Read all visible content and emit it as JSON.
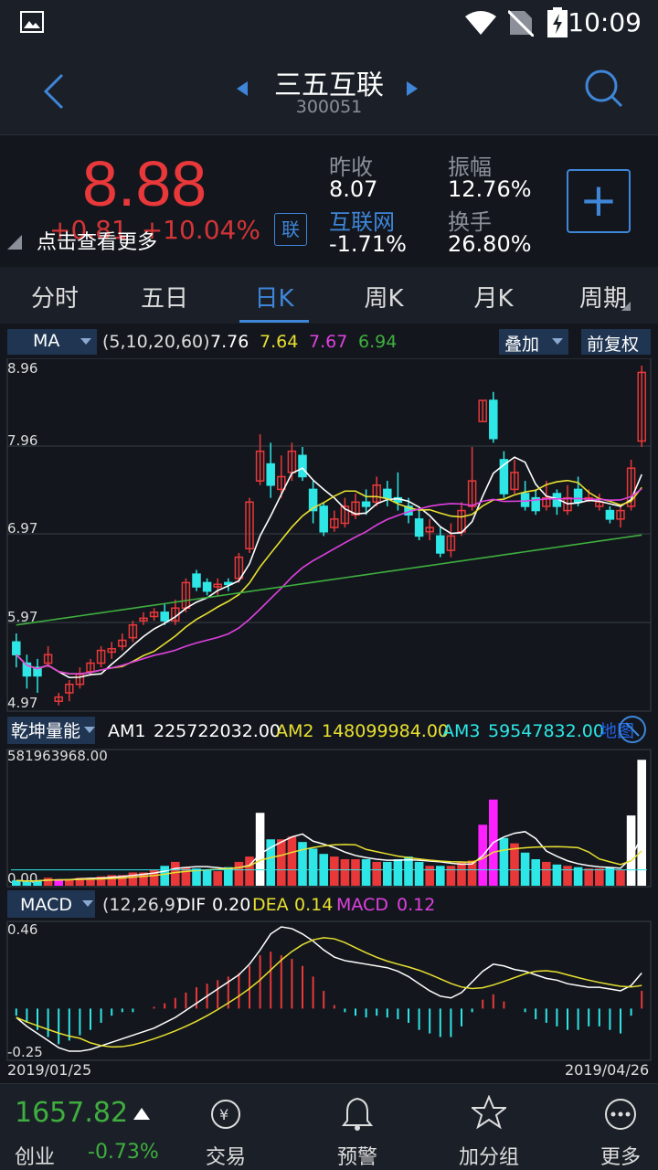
{
  "status_bar": {
    "time": "10:09"
  },
  "header": {
    "title": "三五互联",
    "code": "300051"
  },
  "quote": {
    "price": "8.88",
    "change": "+0.81",
    "change_pct": "+10.04%",
    "tip": "点击查看更多",
    "lian_label": "联",
    "prev_close_label": "昨收",
    "prev_close": "8.07",
    "sector_label": "互联网",
    "sector_pct": "-1.71%",
    "amplitude_label": "振幅",
    "amplitude": "12.76%",
    "turnover_label": "换手",
    "turnover": "26.80%"
  },
  "tabs": [
    {
      "label": "分时"
    },
    {
      "label": "五日"
    },
    {
      "label": "日K"
    },
    {
      "label": "周K"
    },
    {
      "label": "月K"
    },
    {
      "label": "周期"
    }
  ],
  "ma_bar": {
    "indicator": "MA",
    "params": "(5,10,20,60)",
    "ma5": "7.76",
    "ma10": "7.64",
    "ma20": "7.67",
    "ma60": "6.94",
    "overlay": "叠加",
    "adjust": "前复权"
  },
  "kline": {
    "y_labels": [
      "8.96",
      "7.96",
      "6.97",
      "5.97",
      "4.97"
    ]
  },
  "vol_bar": {
    "indicator": "乾坤量能",
    "am1_label": "AM1",
    "am1": "225722032.00",
    "am2_label": "AM2",
    "am2": "148099984.00",
    "am3_label": "AM3",
    "am3": "59547832.00",
    "trail": "地图",
    "ymax": "581963968.00",
    "ymin": "0.00"
  },
  "macd_bar": {
    "indicator": "MACD",
    "params": "(12,26,9)",
    "dif_label": "DIF",
    "dif": "0.20",
    "dea_label": "DEA",
    "dea": "0.14",
    "macd_label": "MACD",
    "macd": "0.12",
    "ymax": "0.46",
    "ymin": "-0.25",
    "date_start": "2019/01/25",
    "date_end": "2019/04/26"
  },
  "bottom_bar": {
    "index_value": "1657.82",
    "index_name": "创业",
    "index_pct": "-0.73%",
    "nav": [
      {
        "label": "交易"
      },
      {
        "label": "预警"
      },
      {
        "label": "加分组"
      },
      {
        "label": "更多"
      }
    ]
  },
  "colors": {
    "up": "#e8383a",
    "down": "#2ee6e6",
    "accent": "#3f86d9",
    "ma5": "#ffffff",
    "ma10": "#e8e030",
    "ma20": "#e040e0",
    "ma60": "#3fae3f"
  }
}
